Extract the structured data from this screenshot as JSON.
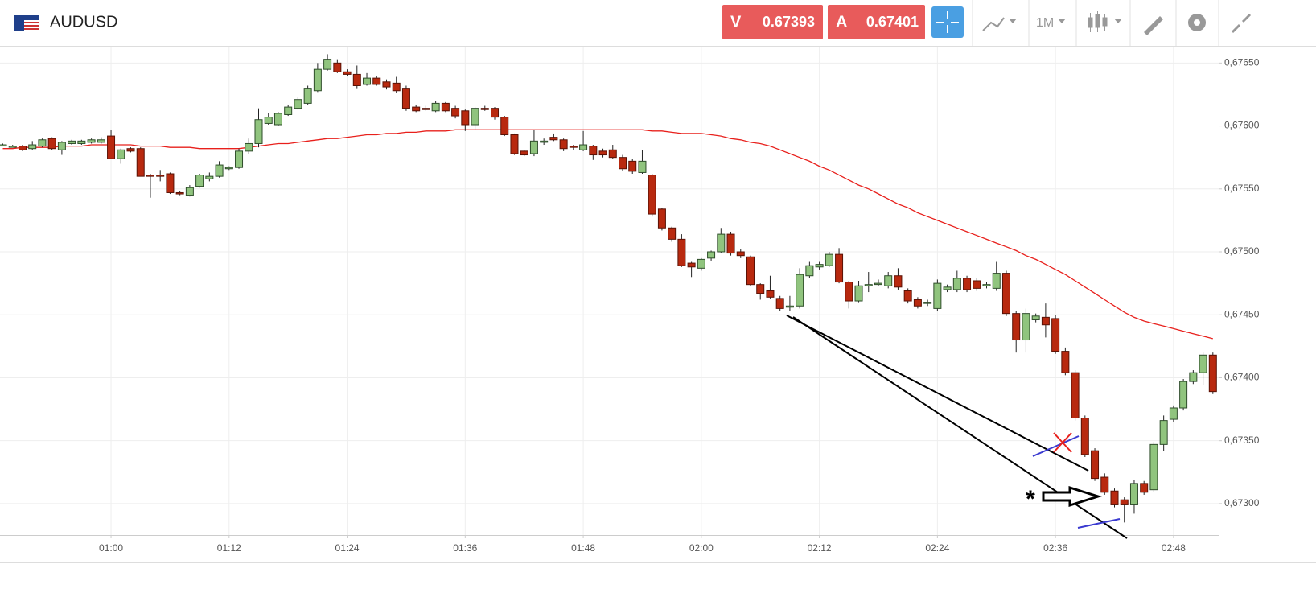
{
  "header": {
    "symbol": "AUDUSD",
    "sell": {
      "label": "V",
      "price": "0.67393"
    },
    "buy": {
      "label": "A",
      "price": "0.67401"
    },
    "timeframe": "1M"
  },
  "chart_data": {
    "type": "candlestick",
    "categories": [
      null,
      null,
      null,
      null,
      null,
      null,
      null,
      null,
      null,
      null,
      null,
      "01:00",
      null,
      null,
      null,
      null,
      null,
      null,
      null,
      null,
      null,
      null,
      null,
      "01:12",
      null,
      null,
      null,
      null,
      null,
      null,
      null,
      null,
      null,
      null,
      null,
      "01:24",
      null,
      null,
      null,
      null,
      null,
      null,
      null,
      null,
      null,
      null,
      null,
      "01:36",
      null,
      null,
      null,
      null,
      null,
      null,
      null,
      null,
      null,
      null,
      null,
      "01:48",
      null,
      null,
      null,
      null,
      null,
      null,
      null,
      null,
      null,
      null,
      null,
      "02:00",
      null,
      null,
      null,
      null,
      null,
      null,
      null,
      null,
      null,
      null,
      null,
      "02:12",
      null,
      null,
      null,
      null,
      null,
      null,
      null,
      null,
      null,
      null,
      null,
      "02:24",
      null,
      null,
      null,
      null,
      null,
      null,
      null,
      null,
      null,
      null,
      null,
      "02:36",
      null,
      null,
      null,
      null,
      null,
      null,
      null,
      null,
      null,
      null,
      null,
      "02:48",
      null,
      null,
      null,
      null
    ],
    "open": [
      0.67585,
      0.67584,
      0.67584,
      0.67582,
      0.67584,
      0.6759,
      0.67581,
      0.67586,
      0.67586,
      0.67587,
      0.67587,
      0.67592,
      0.67574,
      0.67582,
      0.67582,
      0.67561,
      0.67561,
      0.67562,
      0.67547,
      0.67545,
      0.67552,
      0.67558,
      0.6756,
      0.67566,
      0.67567,
      0.6758,
      0.67586,
      0.67602,
      0.67601,
      0.67609,
      0.67614,
      0.67618,
      0.67628,
      0.67645,
      0.6765,
      0.67643,
      0.67641,
      0.67633,
      0.67638,
      0.67635,
      0.67634,
      0.6763,
      0.67615,
      0.67614,
      0.67612,
      0.67618,
      0.67614,
      0.67612,
      0.67601,
      0.67614,
      0.67614,
      0.67607,
      0.67593,
      0.6758,
      0.67578,
      0.67587,
      0.67591,
      0.67589,
      0.67584,
      0.67581,
      0.67584,
      0.6758,
      0.67581,
      0.67575,
      0.67572,
      0.67563,
      0.67561,
      0.67534,
      0.67519,
      0.6751,
      0.67491,
      0.67487,
      0.67495,
      0.675,
      0.67514,
      0.675,
      0.67496,
      0.67474,
      0.67469,
      0.67463,
      0.67457,
      0.67457,
      0.67481,
      0.67488,
      0.67489,
      0.67498,
      0.67476,
      0.67461,
      0.67474,
      0.67475,
      0.67473,
      0.67481,
      0.67469,
      0.67462,
      0.67459,
      0.67455,
      0.6747,
      0.6747,
      0.67479,
      0.67477,
      0.67473,
      0.67471,
      0.67483,
      0.67451,
      0.6743,
      0.67446,
      0.67448,
      0.67447,
      0.67421,
      0.67404,
      0.67368,
      0.67342,
      0.67321,
      0.6731,
      0.67303,
      0.67299,
      0.67316,
      0.67311,
      0.67347,
      0.67367,
      0.67376,
      0.67397,
      0.67404,
      0.67418
    ],
    "high": [
      0.67586,
      0.67585,
      0.67585,
      0.67588,
      0.6759,
      0.67591,
      0.67588,
      0.67589,
      0.67589,
      0.6759,
      0.67591,
      0.67597,
      0.67582,
      0.67583,
      0.67583,
      0.67562,
      0.67565,
      0.67563,
      0.67548,
      0.67553,
      0.67562,
      0.67563,
      0.67572,
      0.67568,
      0.67582,
      0.6759,
      0.67614,
      0.6761,
      0.67611,
      0.67617,
      0.67623,
      0.67632,
      0.6765,
      0.67657,
      0.67653,
      0.67645,
      0.67648,
      0.67642,
      0.6764,
      0.67637,
      0.67639,
      0.67632,
      0.67617,
      0.67616,
      0.6762,
      0.67619,
      0.67616,
      0.67613,
      0.67615,
      0.67616,
      0.67615,
      0.67608,
      0.67594,
      0.67581,
      0.67597,
      0.6759,
      0.67594,
      0.6759,
      0.67585,
      0.67596,
      0.67585,
      0.67582,
      0.67585,
      0.67577,
      0.67574,
      0.67581,
      0.67562,
      0.67535,
      0.6752,
      0.67514,
      0.67492,
      0.67495,
      0.67501,
      0.67519,
      0.67516,
      0.67502,
      0.67497,
      0.67475,
      0.67481,
      0.67465,
      0.67465,
      0.67487,
      0.67492,
      0.67492,
      0.675,
      0.67503,
      0.67477,
      0.67477,
      0.67484,
      0.67478,
      0.67484,
      0.67487,
      0.67471,
      0.67464,
      0.67462,
      0.67478,
      0.67474,
      0.67485,
      0.67481,
      0.67479,
      0.67476,
      0.67492,
      0.67485,
      0.67453,
      0.67455,
      0.67451,
      0.67459,
      0.6745,
      0.67424,
      0.67406,
      0.6737,
      0.67344,
      0.67324,
      0.67312,
      0.67305,
      0.67319,
      0.67318,
      0.67349,
      0.6737,
      0.67378,
      0.67399,
      0.67406,
      0.6742,
      0.6742
    ],
    "low": [
      0.67584,
      0.67583,
      0.6758,
      0.67581,
      0.67583,
      0.67581,
      0.67577,
      0.67585,
      0.67585,
      0.67586,
      0.67586,
      0.67574,
      0.6757,
      0.67579,
      0.6756,
      0.67543,
      0.67556,
      0.67546,
      0.67545,
      0.67544,
      0.67551,
      0.67556,
      0.67559,
      0.67565,
      0.67566,
      0.67578,
      0.67583,
      0.67601,
      0.676,
      0.67608,
      0.67613,
      0.67617,
      0.67627,
      0.67644,
      0.67642,
      0.6764,
      0.6763,
      0.67632,
      0.67632,
      0.67629,
      0.67626,
      0.67612,
      0.67611,
      0.67612,
      0.67611,
      0.67611,
      0.67606,
      0.67596,
      0.67597,
      0.67612,
      0.67605,
      0.67592,
      0.67577,
      0.67576,
      0.67576,
      0.67585,
      0.67588,
      0.6758,
      0.67581,
      0.6758,
      0.67573,
      0.67575,
      0.67574,
      0.67564,
      0.67562,
      0.67562,
      0.67528,
      0.67517,
      0.67508,
      0.67488,
      0.6748,
      0.67485,
      0.67493,
      0.67499,
      0.67497,
      0.67495,
      0.67473,
      0.67462,
      0.67463,
      0.67453,
      0.67453,
      0.67455,
      0.67479,
      0.67486,
      0.67488,
      0.67475,
      0.67455,
      0.6746,
      0.67468,
      0.67473,
      0.67471,
      0.6747,
      0.67459,
      0.67455,
      0.67457,
      0.67453,
      0.67468,
      0.67468,
      0.67468,
      0.67469,
      0.67471,
      0.67469,
      0.67449,
      0.6742,
      0.6742,
      0.67444,
      0.67432,
      0.67419,
      0.67402,
      0.67366,
      0.67337,
      0.67318,
      0.67307,
      0.67297,
      0.67285,
      0.67292,
      0.67307,
      0.67309,
      0.67342,
      0.67365,
      0.67374,
      0.67395,
      0.67394,
      0.67387
    ],
    "close": [
      0.67585,
      0.67584,
      0.67581,
      0.67585,
      0.67589,
      0.67582,
      0.67587,
      0.67588,
      0.67588,
      0.67589,
      0.67589,
      0.67574,
      0.67581,
      0.6758,
      0.6756,
      0.6756,
      0.6756,
      0.67547,
      0.67546,
      0.67551,
      0.67561,
      0.6756,
      0.67569,
      0.67567,
      0.6758,
      0.67586,
      0.67605,
      0.67607,
      0.6761,
      0.67615,
      0.67621,
      0.6763,
      0.67645,
      0.67653,
      0.67643,
      0.67641,
      0.67632,
      0.67638,
      0.67633,
      0.67631,
      0.67628,
      0.67614,
      0.67612,
      0.67613,
      0.67618,
      0.67612,
      0.67608,
      0.67601,
      0.67614,
      0.67613,
      0.67607,
      0.67593,
      0.67578,
      0.67577,
      0.67588,
      0.67588,
      0.67589,
      0.67582,
      0.67583,
      0.67585,
      0.67577,
      0.67577,
      0.67575,
      0.67566,
      0.67564,
      0.67572,
      0.6753,
      0.67519,
      0.6751,
      0.67489,
      0.67488,
      0.67494,
      0.675,
      0.67514,
      0.67499,
      0.67497,
      0.67474,
      0.67467,
      0.67464,
      0.67455,
      0.67457,
      0.67482,
      0.67489,
      0.6749,
      0.67498,
      0.67476,
      0.67461,
      0.67473,
      0.67474,
      0.67475,
      0.67481,
      0.67472,
      0.67461,
      0.67457,
      0.6746,
      0.67475,
      0.67472,
      0.67479,
      0.6747,
      0.67471,
      0.67474,
      0.67483,
      0.67451,
      0.6743,
      0.67451,
      0.67449,
      0.67442,
      0.67421,
      0.67404,
      0.67368,
      0.67339,
      0.6732,
      0.67309,
      0.67299,
      0.67299,
      0.67316,
      0.67309,
      0.67347,
      0.67366,
      0.67376,
      0.67397,
      0.67404,
      0.67418,
      0.67389
    ],
    "up_color": "#90c47e",
    "down_color": "#b8290f",
    "lines": [
      {
        "color": "#e8201c",
        "values": [
          0.67582,
          0.67582,
          0.67583,
          0.67583,
          0.67583,
          0.67583,
          0.67584,
          0.67584,
          0.67584,
          0.67585,
          0.67585,
          0.67585,
          0.67585,
          0.67585,
          0.67584,
          0.67584,
          0.67584,
          0.67583,
          0.67583,
          0.67583,
          0.67582,
          0.67582,
          0.67582,
          0.67582,
          0.67582,
          0.67583,
          0.67584,
          0.67585,
          0.67586,
          0.67586,
          0.67587,
          0.67588,
          0.67589,
          0.6759,
          0.6759,
          0.67591,
          0.67592,
          0.67593,
          0.67593,
          0.67594,
          0.67594,
          0.67595,
          0.67595,
          0.67596,
          0.67596,
          0.67596,
          0.67597,
          0.67597,
          0.67597,
          0.67597,
          0.67597,
          0.67597,
          0.67597,
          0.67597,
          0.67597,
          0.67597,
          0.67597,
          0.67597,
          0.67597,
          0.67597,
          0.67597,
          0.67597,
          0.67597,
          0.67597,
          0.67597,
          0.67597,
          0.67596,
          0.67596,
          0.67595,
          0.67594,
          0.67594,
          0.67594,
          0.67593,
          0.67592,
          0.6759,
          0.67589,
          0.67587,
          0.67586,
          0.67584,
          0.67581,
          0.67578,
          0.67575,
          0.67572,
          0.67568,
          0.67565,
          0.67561,
          0.67557,
          0.67553,
          0.6755,
          0.67546,
          0.67542,
          0.67538,
          0.67535,
          0.67531,
          0.67528,
          0.67525,
          0.67522,
          0.67519,
          0.67516,
          0.67513,
          0.6751,
          0.67507,
          0.67504,
          0.67501,
          0.67497,
          0.67494,
          0.6749,
          0.67486,
          0.67482,
          0.67477,
          0.67472,
          0.67467,
          0.67462,
          0.67457,
          0.67452,
          0.67448,
          0.67445,
          0.67443,
          0.67441,
          0.67439,
          0.67437,
          0.67435,
          0.67433,
          0.67431
        ]
      }
    ],
    "ylim": [
      0.67275,
      0.67663
    ],
    "yticks": [
      {
        "value": 0.673,
        "label": "0,67300"
      },
      {
        "value": 0.6735,
        "label": "0,67350"
      },
      {
        "value": 0.674,
        "label": "0,67400"
      },
      {
        "value": 0.6745,
        "label": "0,67450"
      },
      {
        "value": 0.675,
        "label": "0,67500"
      },
      {
        "value": 0.6755,
        "label": "0,67550"
      },
      {
        "value": 0.676,
        "label": "0,67600"
      },
      {
        "value": 0.6765,
        "label": "0,67650"
      }
    ],
    "grid": true,
    "annotation": "*"
  }
}
